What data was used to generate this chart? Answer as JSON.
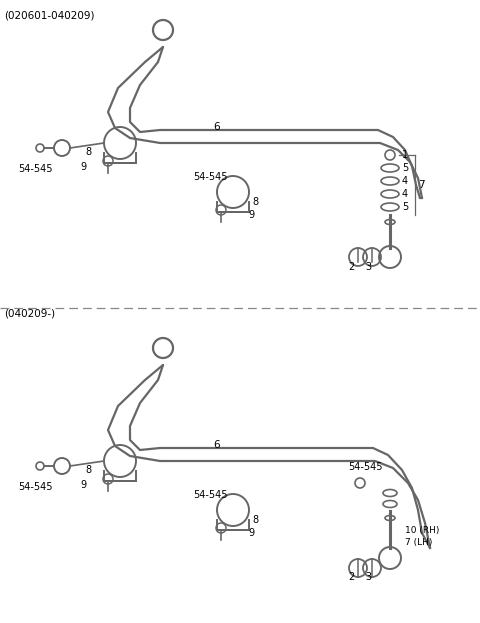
{
  "bg_color": "#ffffff",
  "line_color": "#666666",
  "text_color": "#000000",
  "fig_width": 4.8,
  "fig_height": 6.23,
  "dpi": 100,
  "top_label": "(020601-040209)",
  "bottom_label": "(040209-)"
}
